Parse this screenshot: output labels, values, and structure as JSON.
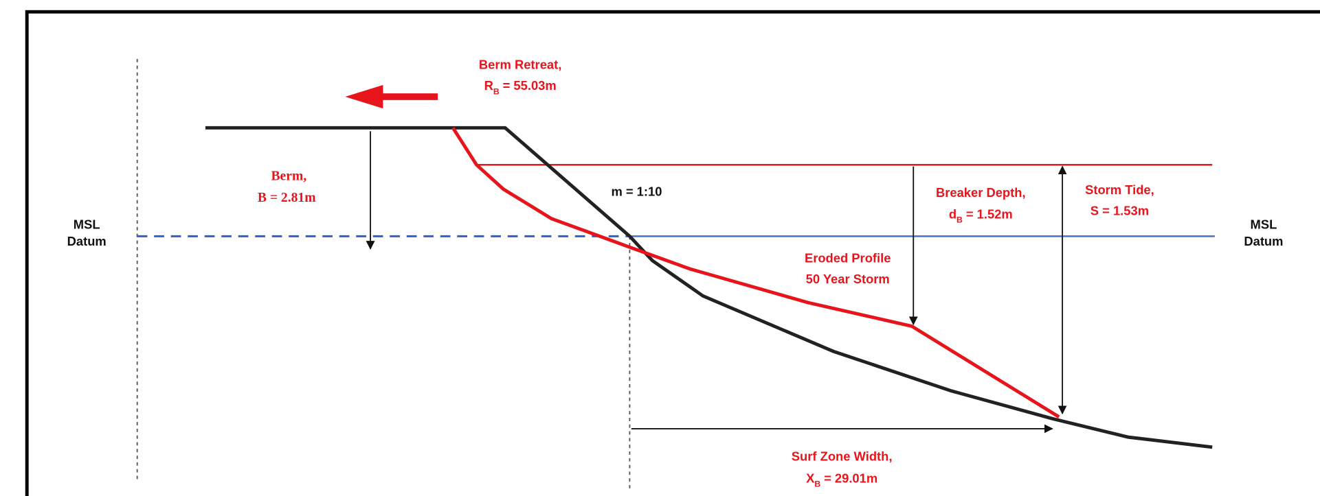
{
  "labels": {
    "berm_retreat": {
      "title": "Berm Retreat,",
      "symbol": "R",
      "sub": "B",
      "value": "= 55.03m"
    },
    "berm": {
      "title": "Berm,",
      "text": "B = 2.81m"
    },
    "slope": "m = 1:10",
    "breaker_depth": {
      "title": "Breaker Depth,",
      "symbol": "d",
      "sub": "B",
      "value": "= 1.52m"
    },
    "storm_tide": {
      "title": "Storm Tide,",
      "text": "S = 1.53m"
    },
    "eroded_profile": [
      "Eroded Profile",
      "50 Year Storm"
    ],
    "surf_zone": {
      "title": "Surf Zone Width,",
      "symbol": "X",
      "sub": "B",
      "value": "= 29.01m"
    },
    "msl_left": [
      "MSL",
      "Datum"
    ],
    "msl_right": [
      "MSL",
      "Datum"
    ]
  }
}
